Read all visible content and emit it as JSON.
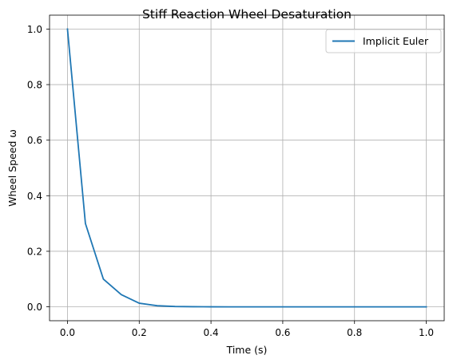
{
  "chart_data": {
    "type": "line",
    "title": "Stiff Reaction Wheel Desaturation",
    "xlabel": "Time (s)",
    "ylabel": "Wheel Speed ω",
    "xlim": [
      -0.05,
      1.05
    ],
    "ylim": [
      -0.05,
      1.05
    ],
    "xticks": [
      0.0,
      0.2,
      0.4,
      0.6,
      0.8,
      1.0
    ],
    "xtick_labels": [
      "0.0",
      "0.2",
      "0.4",
      "0.6",
      "0.8",
      "1.0"
    ],
    "yticks": [
      0.0,
      0.2,
      0.4,
      0.6,
      0.8,
      1.0
    ],
    "ytick_labels": [
      "0.0",
      "0.2",
      "0.4",
      "0.6",
      "0.8",
      "1.0"
    ],
    "grid": true,
    "legend_position": "top-right",
    "series": [
      {
        "name": "Implicit Euler",
        "color": "#1f77b4",
        "x": [
          0.0,
          0.05,
          0.1,
          0.15,
          0.2,
          0.25,
          0.3,
          0.35,
          0.4,
          0.45,
          0.5,
          0.55,
          0.6,
          0.65,
          0.7,
          0.75,
          0.8,
          0.85,
          0.9,
          0.95,
          1.0
        ],
        "y": [
          1.0,
          0.3,
          0.1,
          0.044,
          0.013,
          0.004,
          0.0012,
          0.0004,
          0.0001,
          0.0,
          0.0,
          0.0,
          0.0,
          0.0,
          0.0,
          0.0,
          0.0,
          0.0,
          0.0,
          0.0,
          0.0
        ]
      }
    ]
  }
}
